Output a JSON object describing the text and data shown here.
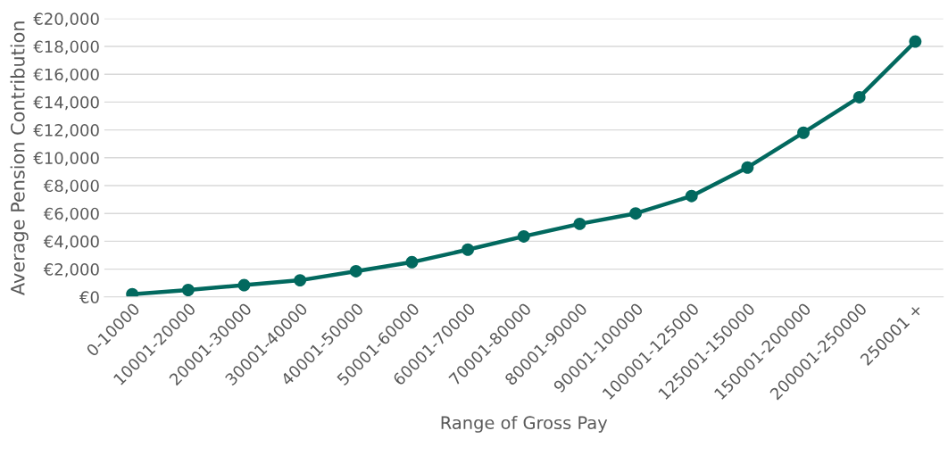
{
  "chart_data": {
    "type": "line",
    "xlabel": "Range of Gross Pay",
    "ylabel": "Average Pension Contribution",
    "categories": [
      "0-10000",
      "10001-20000",
      "20001-30000",
      "30001-40000",
      "40001-50000",
      "50001-60000",
      "60001-70000",
      "70001-80000",
      "80001-90000",
      "90001-100000",
      "100001-125000",
      "125001-150000",
      "150001-200000",
      "200001-250000",
      "250001 +"
    ],
    "series": [
      {
        "color": "#02695f",
        "values": [
          200,
          500,
          850,
          1200,
          1850,
          2500,
          3400,
          4350,
          5250,
          6000,
          7250,
          9300,
          11800,
          14350,
          18350
        ]
      }
    ],
    "ylim": [
      0,
      20000
    ],
    "yticks": [
      {
        "value": 0,
        "label": "€0"
      },
      {
        "value": 2000,
        "label": "€2,000"
      },
      {
        "value": 4000,
        "label": "€4,000"
      },
      {
        "value": 6000,
        "label": "€6,000"
      },
      {
        "value": 8000,
        "label": "€8,000"
      },
      {
        "value": 10000,
        "label": "€10,000"
      },
      {
        "value": 12000,
        "label": "€12,000"
      },
      {
        "value": 14000,
        "label": "€14,000"
      },
      {
        "value": 16000,
        "label": "€16,000"
      },
      {
        "value": 18000,
        "label": "€18,000"
      },
      {
        "value": 20000,
        "label": "€20,000"
      }
    ],
    "grid": "y",
    "marker": "circle",
    "line_style": "solid"
  }
}
